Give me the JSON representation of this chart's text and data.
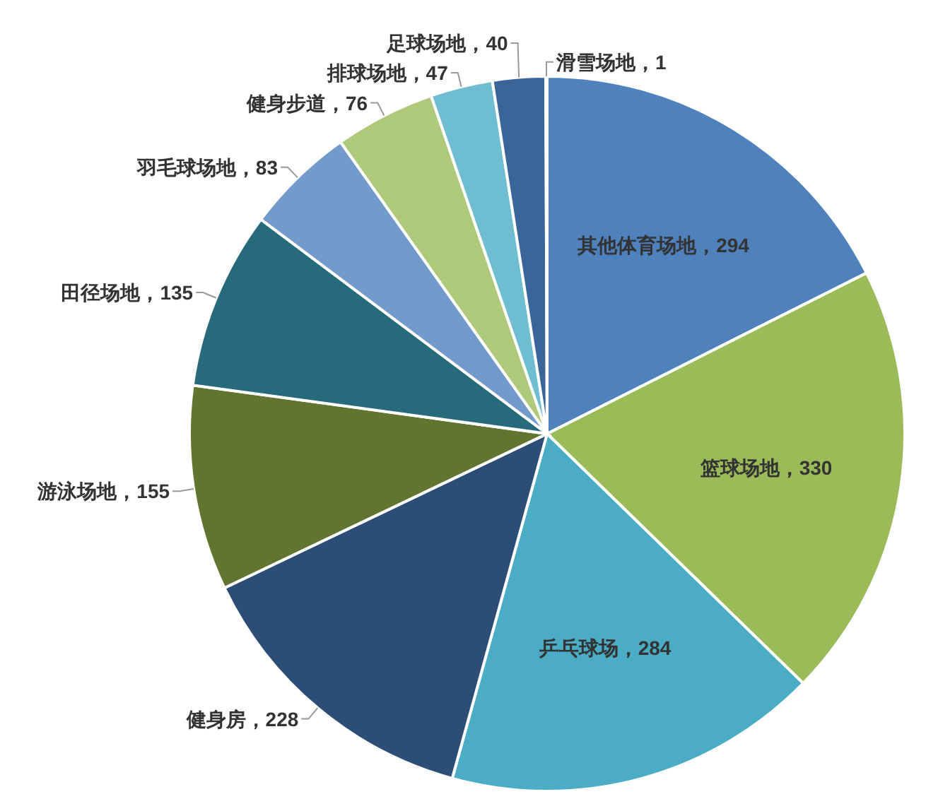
{
  "chart_data": {
    "type": "pie",
    "categories": [
      "其他体育场地",
      "篮球场地",
      "乒乓球场",
      "健身房",
      "游泳场地",
      "田径场地",
      "羽毛球场地",
      "健身步道",
      "排球场地",
      "足球场地",
      "滑雪场地"
    ],
    "values": [
      294,
      330,
      284,
      228,
      155,
      135,
      83,
      76,
      47,
      40,
      1
    ],
    "colors": [
      "#4f81bd",
      "#9bbb59",
      "#4bacc6",
      "#2c4d75",
      "#5f7530",
      "#276a7c",
      "#729aca",
      "#afc97a",
      "#6fbdd1",
      "#3a6599",
      "#b9cde5"
    ],
    "value_labels": [
      "，294",
      "，330",
      "，284",
      "，228",
      "，155",
      "，135",
      "，83",
      "，76",
      "，47",
      "，40",
      "，1"
    ]
  }
}
